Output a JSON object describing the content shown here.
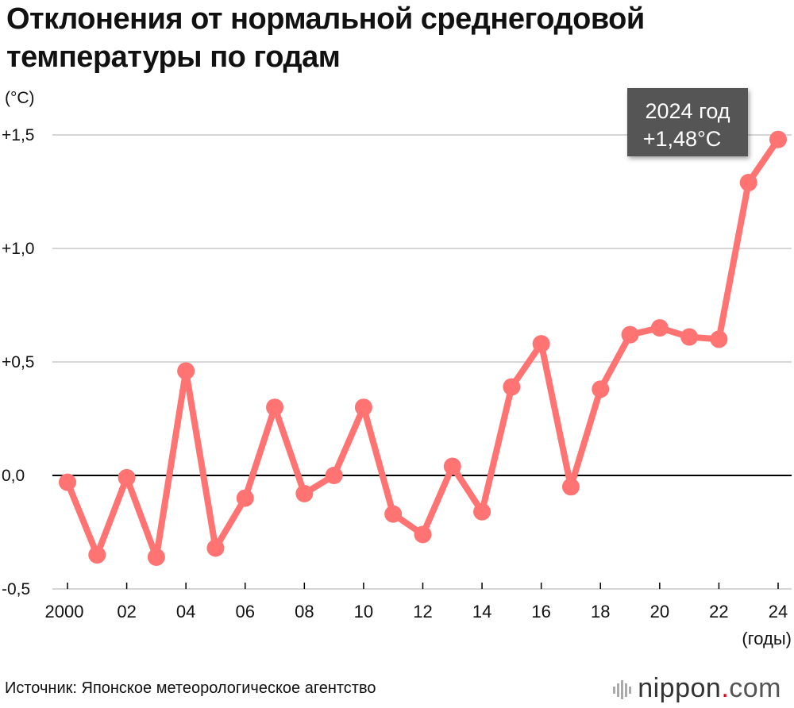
{
  "title": "Отклонения от нормальной среднегодовой температуры по годам",
  "unit_label": "(°C)",
  "x_unit_label": "(годы)",
  "source": "Источник: Японское метеорологическое агентство",
  "logo": {
    "name": "nippon",
    "dot": ".",
    "tld": "com"
  },
  "callout": {
    "line1": "2024 год",
    "line2": "+1,48°C"
  },
  "colors": {
    "series": "#ff7373",
    "grid": "#c8c8c8",
    "zero": "#000000",
    "callout_bg": "#555555"
  },
  "chart_data": {
    "type": "line",
    "title": "Отклонения от нормальной среднегодовой температуры по годам",
    "ylabel": "(°C)",
    "xlabel": "(годы)",
    "ylim": [
      -0.5,
      1.5
    ],
    "grid": true,
    "yticks": [
      "+1,5",
      "+1,0",
      "+0,5",
      "0,0",
      "-0,5"
    ],
    "ytick_values": [
      1.5,
      1.0,
      0.5,
      0.0,
      -0.5
    ],
    "x": [
      2000,
      2001,
      2002,
      2003,
      2004,
      2005,
      2006,
      2007,
      2008,
      2009,
      2010,
      2011,
      2012,
      2013,
      2014,
      2015,
      2016,
      2017,
      2018,
      2019,
      2020,
      2021,
      2022,
      2023,
      2024
    ],
    "xtick_labels": [
      "2000",
      "02",
      "04",
      "06",
      "08",
      "10",
      "12",
      "14",
      "16",
      "18",
      "20",
      "22",
      "24"
    ],
    "xtick_years": [
      2000,
      2002,
      2004,
      2006,
      2008,
      2010,
      2012,
      2014,
      2016,
      2018,
      2020,
      2022,
      2024
    ],
    "series": [
      {
        "values": [
          -0.03,
          -0.35,
          -0.01,
          -0.36,
          0.46,
          -0.32,
          -0.1,
          0.3,
          -0.08,
          0.0,
          0.3,
          -0.17,
          -0.26,
          0.04,
          -0.16,
          0.39,
          0.58,
          -0.05,
          0.38,
          0.62,
          0.65,
          0.61,
          0.6,
          1.29,
          1.48
        ]
      }
    ]
  }
}
